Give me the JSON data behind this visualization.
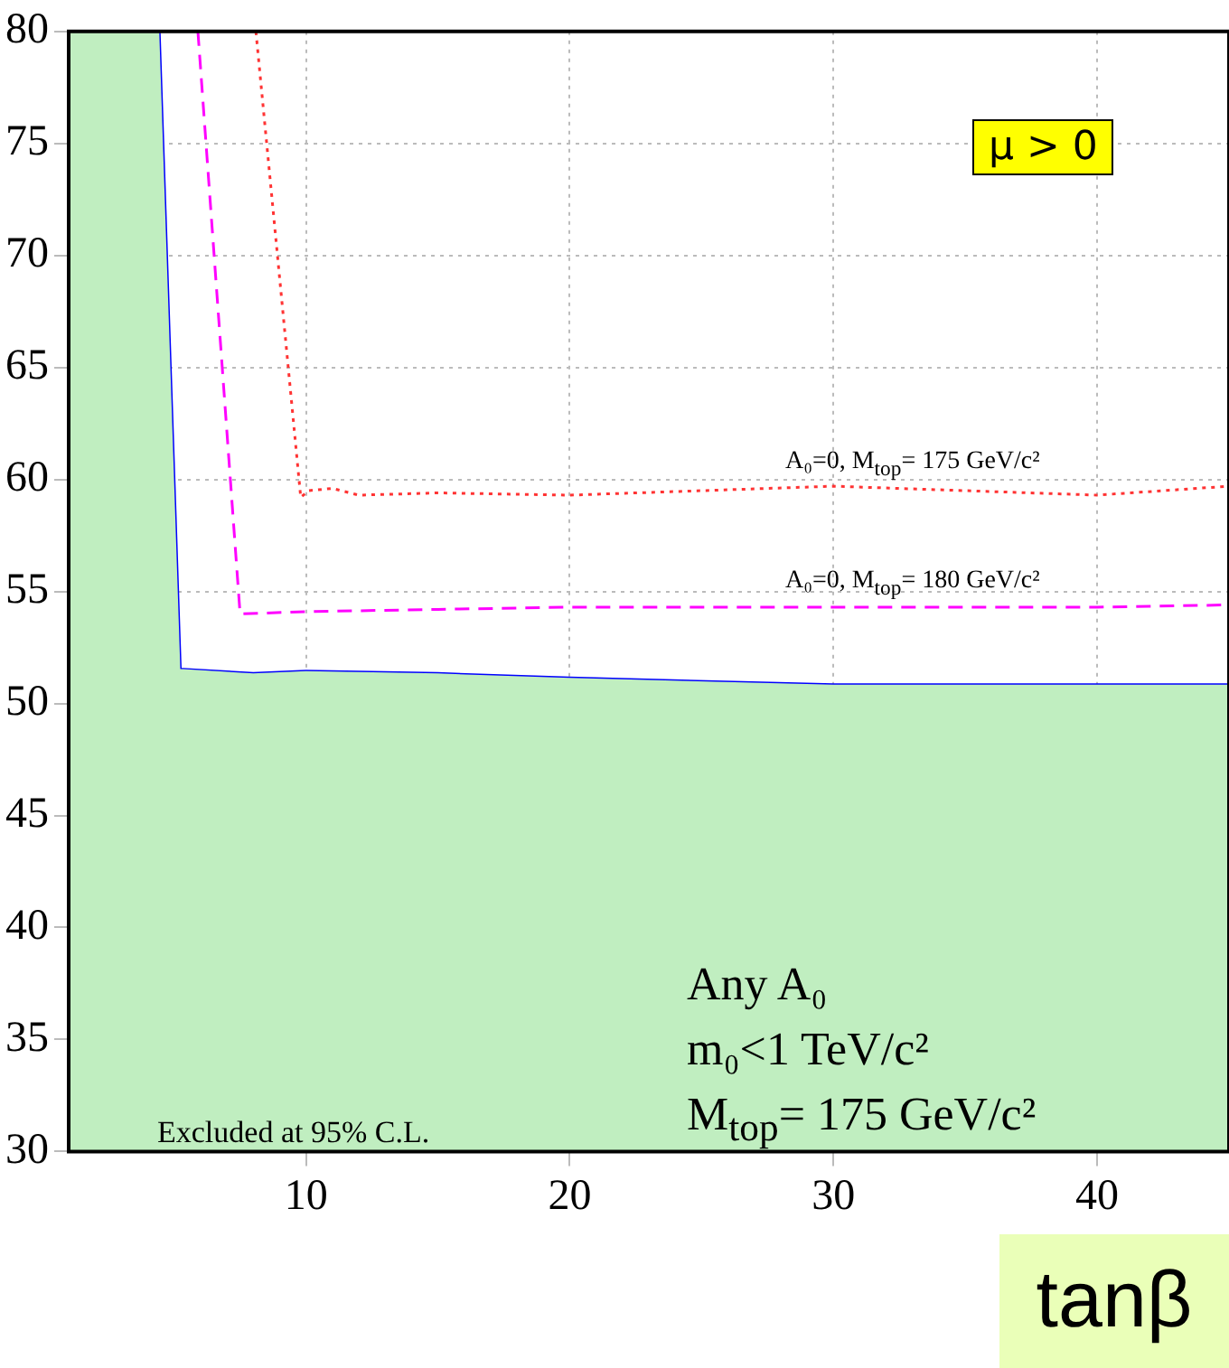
{
  "chart_data": {
    "type": "line",
    "xlabel": "tanβ",
    "annotations": [
      "μ > 0",
      {
        "text": "A₀=0, M$_{top}$= 175 GeV/c²",
        "x": 33,
        "y": 59.6
      },
      {
        "text": "A₀=0, M$_{top}$= 180 GeV/c²",
        "x": 33,
        "y": 54.3
      },
      "Any A₀",
      "m₀<1 TeV/c²",
      "M$_{top}$= 175 GeV/c²",
      "Excluded at 95% C.L."
    ],
    "xlim": [
      1,
      45
    ],
    "xticks": [
      10,
      20,
      30,
      40
    ],
    "ylim": [
      30,
      80
    ],
    "yticks": [
      30,
      35,
      40,
      45,
      50,
      55,
      60,
      65,
      70,
      75,
      80
    ],
    "grid": true,
    "marker": "none",
    "series": [
      {
        "type": "area",
        "color": "#c0eec0",
        "x": [
          1,
          4.4,
          5.2,
          8,
          10,
          15,
          20,
          30,
          40,
          45
        ],
        "values": [
          80,
          80,
          51.5,
          51.3,
          51.4,
          51.3,
          51.1,
          50.8,
          50.8,
          50.8
        ]
      },
      {
        "color": "#0000ff",
        "line_style": "solid",
        "x": [
          4.4,
          5.2,
          8,
          10,
          15,
          20,
          30,
          40,
          45
        ],
        "values": [
          80,
          51.5,
          51.3,
          51.4,
          51.3,
          51.1,
          50.8,
          50.8,
          50.8
        ]
      },
      {
        "color": "#ff3333",
        "line_style": "dotted",
        "x": [
          8.1,
          9.8,
          10.1,
          11,
          12,
          15,
          20,
          25,
          30,
          35,
          40,
          45
        ],
        "values": [
          80,
          59.2,
          59.5,
          59.6,
          59.3,
          59.4,
          59.3,
          59.5,
          59.7,
          59.5,
          59.3,
          59.7
        ]
      },
      {
        "color": "#ff00ff",
        "line_style": "dashed",
        "x": [
          5.9,
          7.5,
          10,
          15,
          20,
          30,
          40,
          45
        ],
        "values": [
          80,
          54,
          54.1,
          54.2,
          54.3,
          54.3,
          54.3,
          54.4
        ]
      }
    ]
  }
}
